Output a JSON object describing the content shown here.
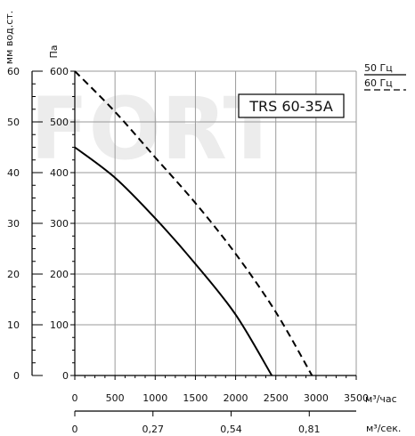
{
  "chart_data": {
    "type": "line",
    "title": "TRS 60-35A",
    "watermark": "FORT",
    "y_primary": {
      "label": "Па",
      "ticks": [
        0,
        100,
        200,
        300,
        400,
        500,
        600
      ],
      "range": [
        0,
        600
      ]
    },
    "y_secondary": {
      "label": "мм вод.ст.",
      "ticks": [
        0,
        10,
        20,
        30,
        40,
        50,
        60
      ],
      "range": [
        0,
        60
      ]
    },
    "x_primary": {
      "label": "м³/час",
      "ticks": [
        0,
        500,
        1000,
        1500,
        2000,
        2500,
        3000,
        3500
      ],
      "range": [
        0,
        3500
      ]
    },
    "x_secondary": {
      "label": "м³/сек.",
      "ticks": [
        "0",
        "0,27",
        "0,54",
        "0,81"
      ],
      "tick_values": [
        0,
        0.27,
        0.54,
        0.81
      ]
    },
    "grid": true,
    "legend_position": "top-right",
    "series": [
      {
        "name": "50 Гц",
        "style": "solid",
        "color": "#000000",
        "points": [
          [
            0,
            450
          ],
          [
            500,
            390
          ],
          [
            1000,
            310
          ],
          [
            1500,
            220
          ],
          [
            2000,
            120
          ],
          [
            2450,
            0
          ]
        ]
      },
      {
        "name": "60 Гц",
        "style": "dashed",
        "color": "#000000",
        "points": [
          [
            0,
            600
          ],
          [
            500,
            520
          ],
          [
            1000,
            430
          ],
          [
            1500,
            340
          ],
          [
            2000,
            240
          ],
          [
            2500,
            125
          ],
          [
            2950,
            0
          ]
        ]
      }
    ]
  }
}
